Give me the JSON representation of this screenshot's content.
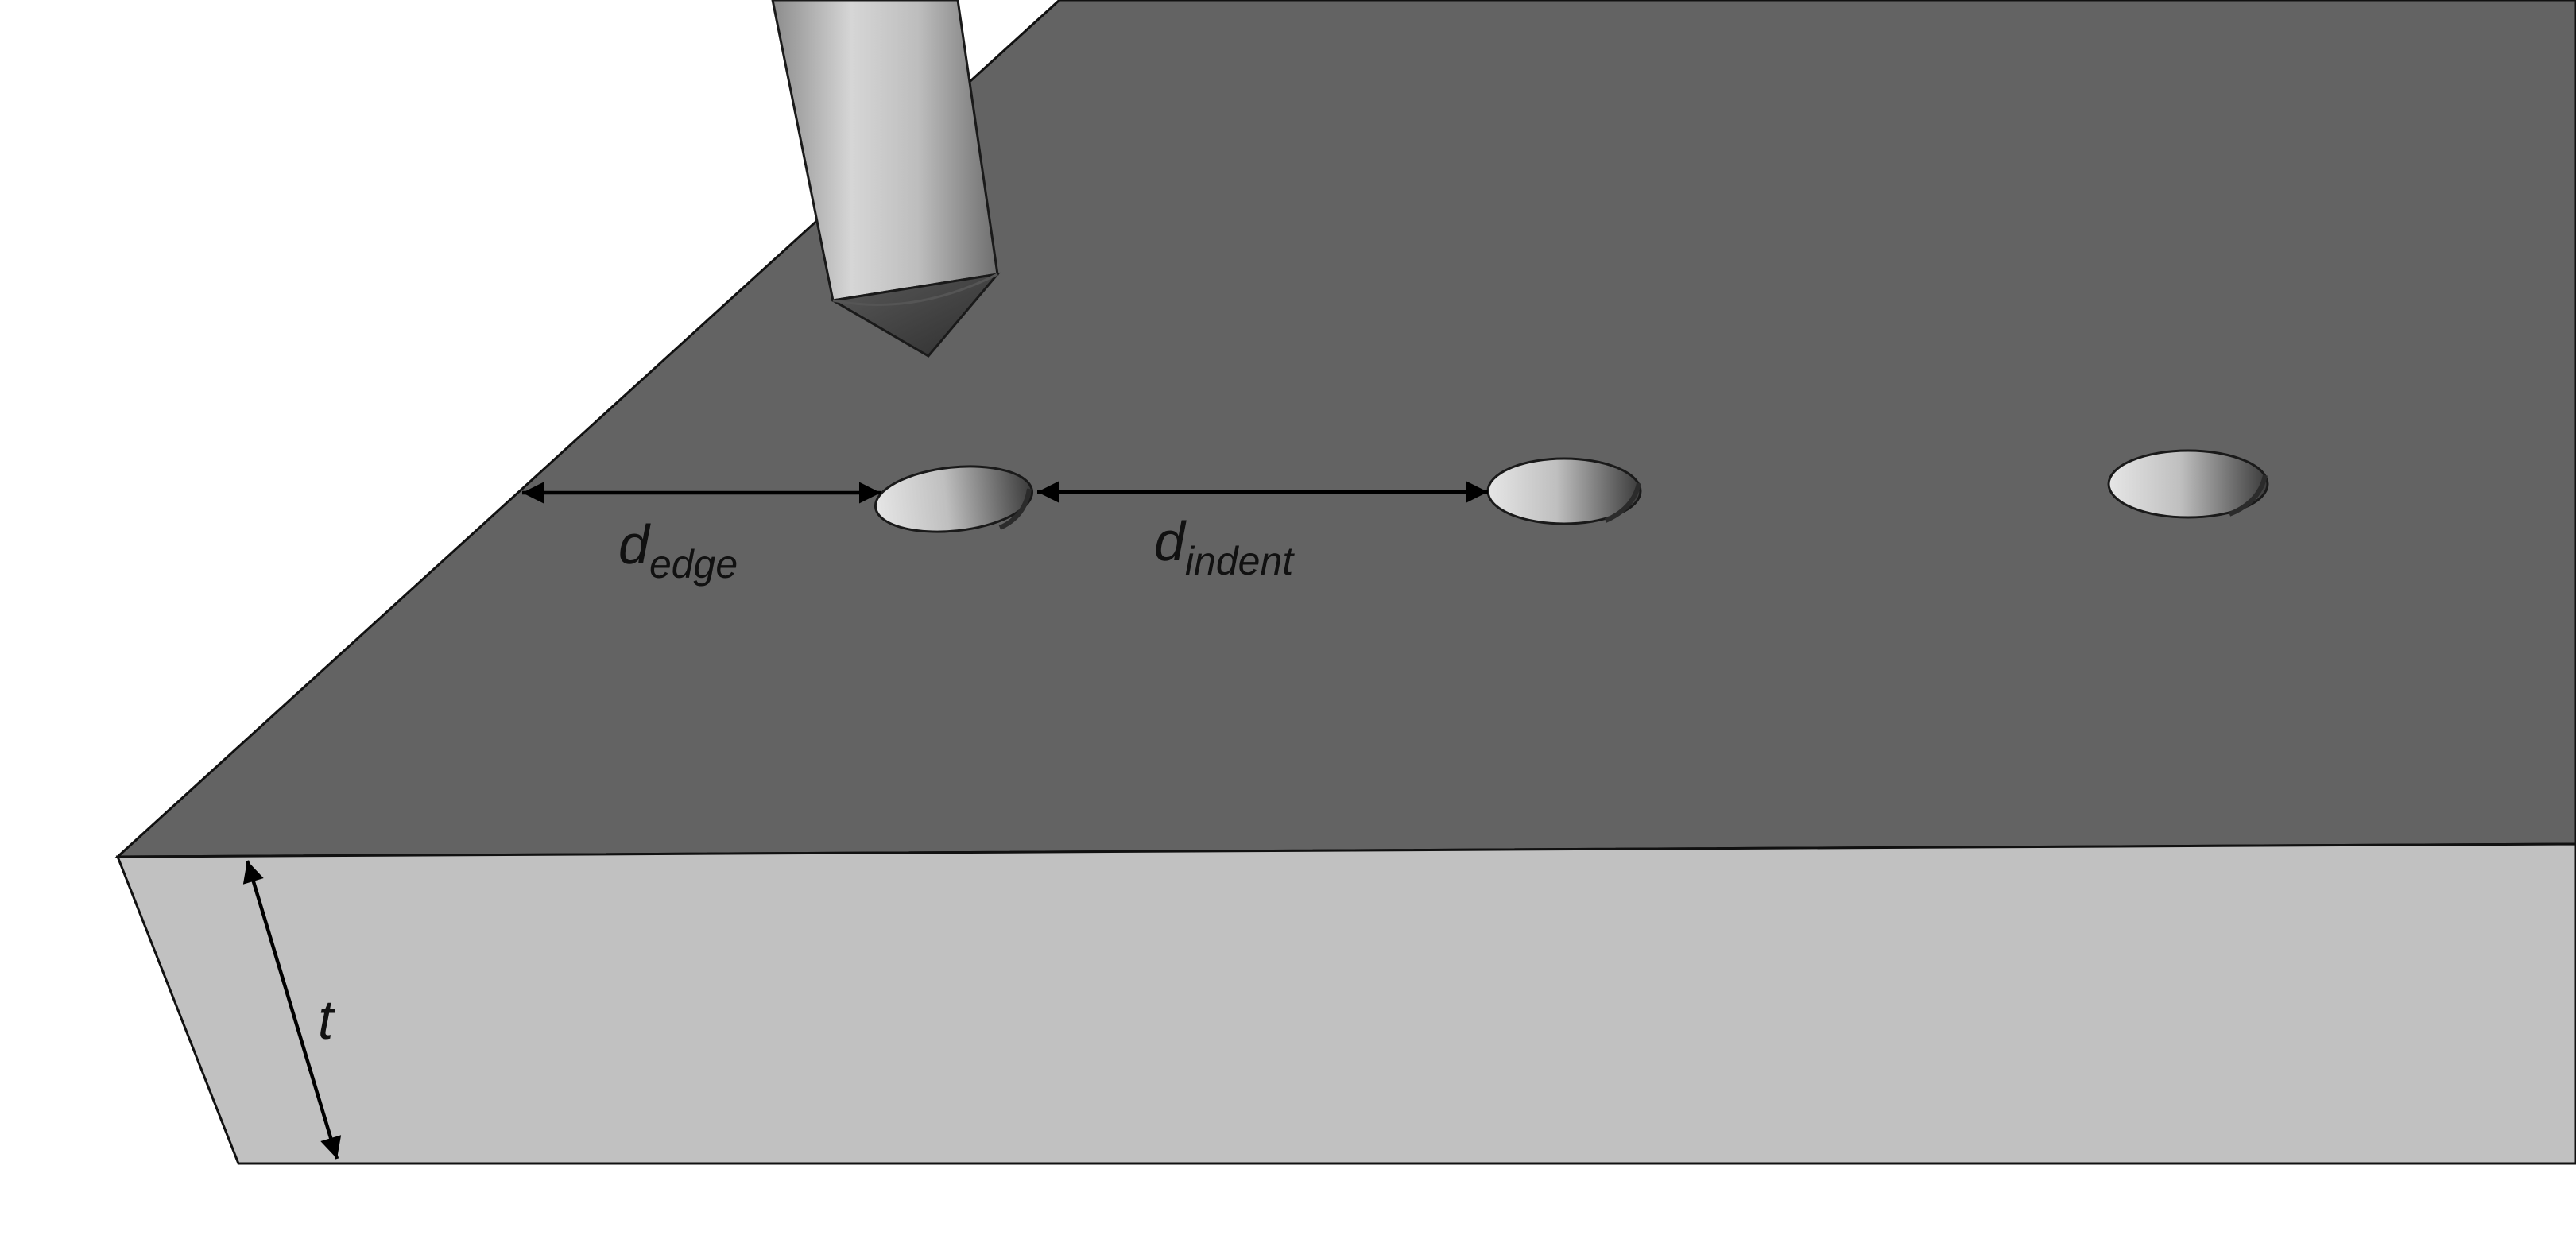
{
  "labels": {
    "edge_main": "d",
    "edge_sub": "edge",
    "indent_main": "d",
    "indent_sub": "indent",
    "thickness": "t"
  },
  "colors": {
    "background": "#ffffff",
    "plate_top": "#636363",
    "plate_front": "#c1c1c1",
    "outline": "#111111",
    "dimension_line": "#000000"
  }
}
